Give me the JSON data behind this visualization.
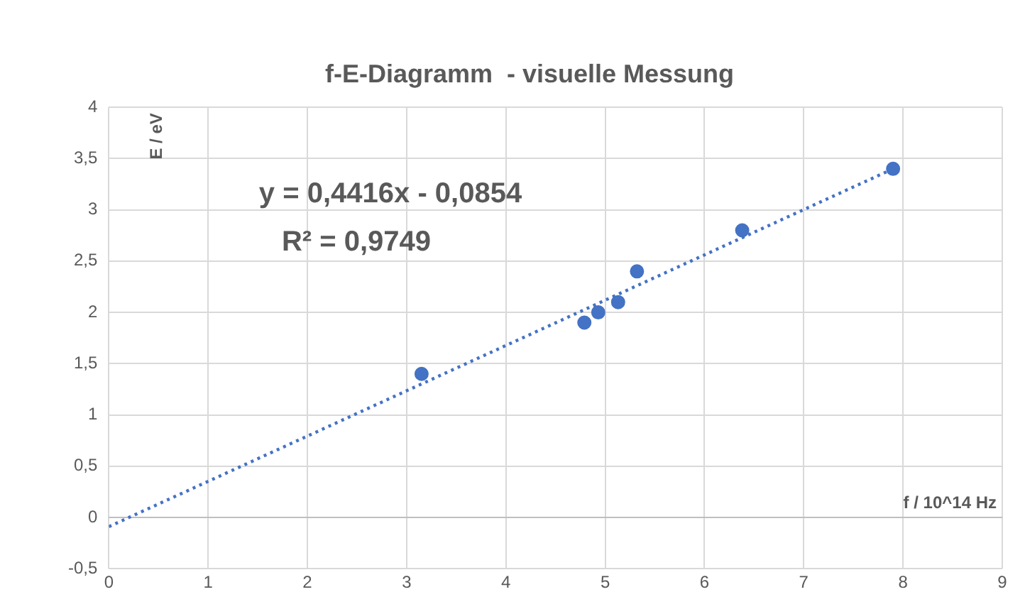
{
  "chart_data": {
    "type": "scatter",
    "title": "f-E-Diagramm  - visuelle Messung",
    "xlabel": "f / 10^14 Hz",
    "ylabel": "E / eV",
    "xlim": [
      0,
      9
    ],
    "xticks": [
      0,
      1,
      2,
      3,
      4,
      5,
      6,
      7,
      8,
      9
    ],
    "ylim": [
      -0.5,
      4
    ],
    "yticks": [
      {
        "value": -0.5,
        "label": "-0,5"
      },
      0,
      {
        "value": 0.5,
        "label": "0,5"
      },
      1,
      {
        "value": 1.5,
        "label": "1,5"
      },
      2,
      {
        "value": 2.5,
        "label": "2,5"
      },
      3,
      {
        "value": 3.5,
        "label": "3,5"
      },
      4
    ],
    "grid": true,
    "legend": false,
    "marker": "circle",
    "series": [
      {
        "type": "scatter",
        "color": "#4472c4",
        "x": [
          3.15,
          4.79,
          4.93,
          5.13,
          5.32,
          6.38,
          7.9
        ],
        "values": [
          1.4,
          1.9,
          2.0,
          2.1,
          2.4,
          2.8,
          3.4
        ]
      },
      {
        "type": "line",
        "color": "#4472c4",
        "line_style": "dotted",
        "marker": "none",
        "x": [
          0,
          7.9
        ],
        "values": [
          -0.09,
          3.4
        ]
      }
    ],
    "annotations": [
      "y = 0,4416x - 0,0854",
      "R² = 0,9749"
    ]
  }
}
